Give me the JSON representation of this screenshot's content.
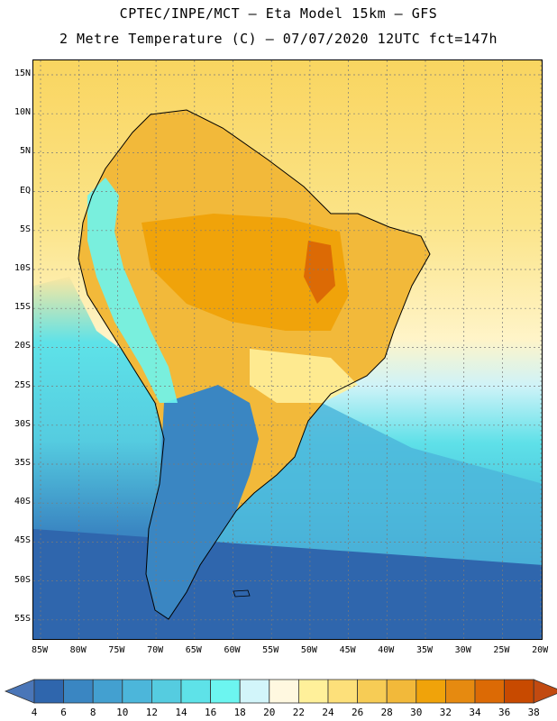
{
  "header": {
    "line1": "CPTEC/INPE/MCT –  Eta Model 15km – GFS",
    "line2": "2 Metre Temperature (C) – 07/07/2020 12UTC fct=147h"
  },
  "map": {
    "lat_labels": [
      "15N",
      "10N",
      "5N",
      "EQ",
      "5S",
      "10S",
      "15S",
      "20S",
      "25S",
      "30S",
      "35S",
      "40S",
      "45S",
      "50S",
      "55S"
    ],
    "lon_labels": [
      "85W",
      "80W",
      "75W",
      "70W",
      "65W",
      "60W",
      "55W",
      "50W",
      "45W",
      "40W",
      "35W",
      "30W",
      "25W",
      "20W"
    ]
  },
  "colorbar": {
    "labels": [
      "4",
      "6",
      "8",
      "10",
      "12",
      "14",
      "16",
      "18",
      "20",
      "22",
      "24",
      "26",
      "28",
      "30",
      "32",
      "34",
      "36",
      "38"
    ],
    "under_color": "#4a76b8",
    "over_color": "#c24a10",
    "colors": [
      "#2f66ad",
      "#3a86c2",
      "#43a0d0",
      "#4cb6da",
      "#55cce0",
      "#5ee2e8",
      "#6cf5f0",
      "#d2f5fa",
      "#fff8e0",
      "#fff09a",
      "#fde07a",
      "#f7cc55",
      "#f2b93a",
      "#f0a30a",
      "#e68a10",
      "#dc6a05",
      "#c84a00"
    ]
  }
}
